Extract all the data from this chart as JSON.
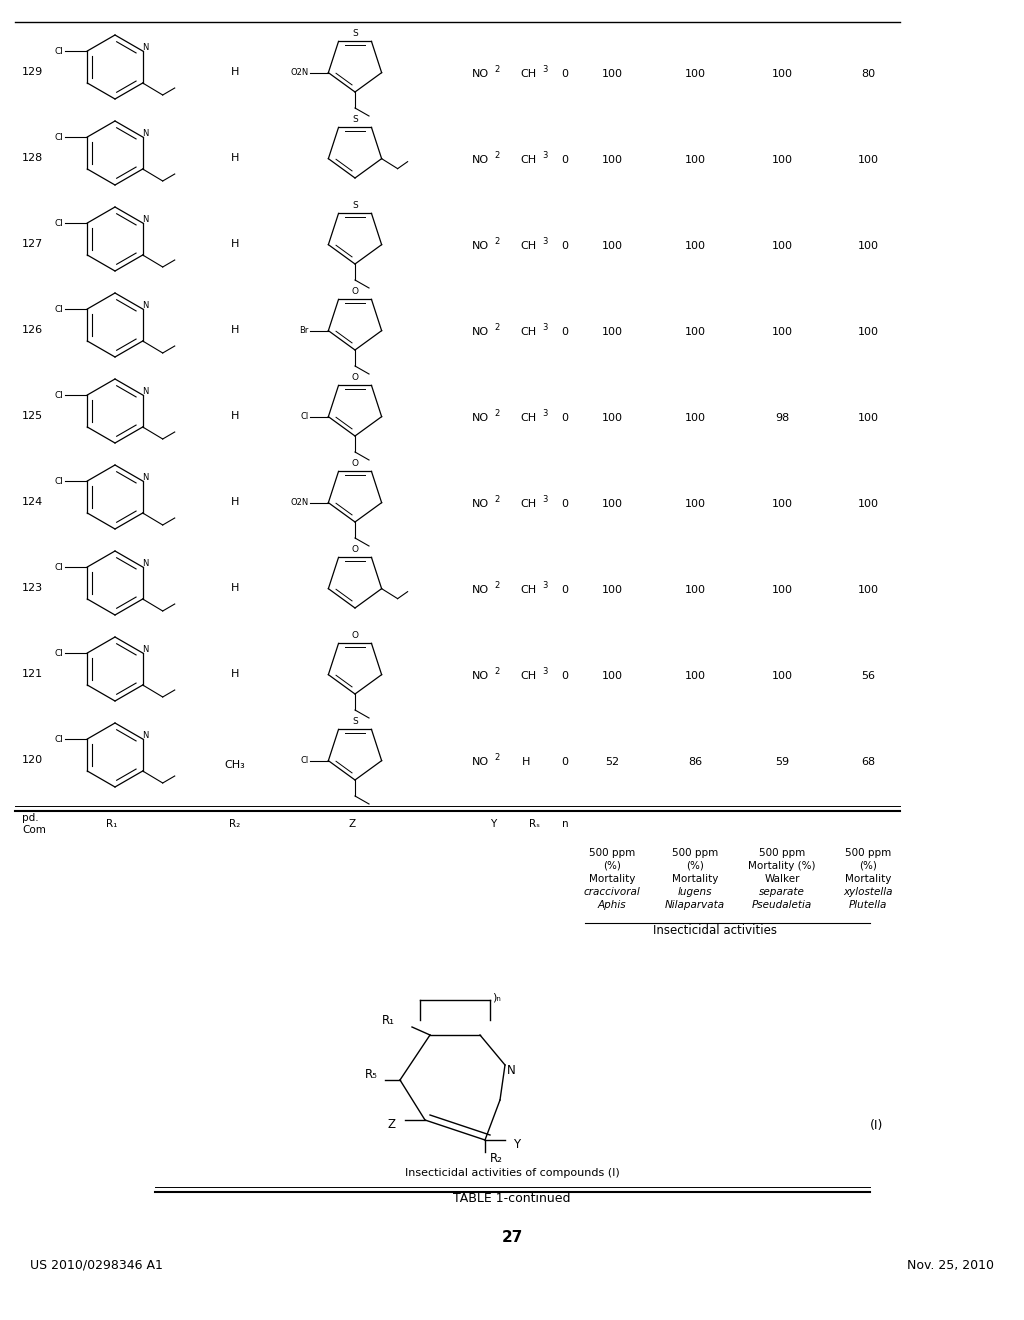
{
  "header_left": "US 2010/0298346 A1",
  "header_right": "Nov. 25, 2010",
  "page_number": "27",
  "table_title": "TABLE 1-continued",
  "table_subtitle": "Insecticidal activities of compounds (I)",
  "compound_label": "(I)",
  "insecticidal_header": "Insecticidal activities",
  "rows": [
    {
      "cpd": "120",
      "R2": "CH3",
      "Z_type": "thiophene2_cl",
      "Z_sub": "Cl",
      "Y": "NO2",
      "Rs": "H",
      "n": "0",
      "aphis": "52",
      "nilap": "86",
      "pseudo": "59",
      "plutella": "68"
    },
    {
      "cpd": "121",
      "R2": "H",
      "Z_type": "furan2_me",
      "Z_sub": "",
      "Y": "NO2",
      "Rs": "CH3",
      "n": "0",
      "aphis": "100",
      "nilap": "100",
      "pseudo": "100",
      "plutella": "56"
    },
    {
      "cpd": "123",
      "R2": "H",
      "Z_type": "furan3_me",
      "Z_sub": "",
      "Y": "NO2",
      "Rs": "CH3",
      "n": "0",
      "aphis": "100",
      "nilap": "100",
      "pseudo": "100",
      "plutella": "100"
    },
    {
      "cpd": "124",
      "R2": "H",
      "Z_type": "furan2_no2",
      "Z_sub": "O2N",
      "Y": "NO2",
      "Rs": "CH3",
      "n": "0",
      "aphis": "100",
      "nilap": "100",
      "pseudo": "100",
      "plutella": "100"
    },
    {
      "cpd": "125",
      "R2": "H",
      "Z_type": "furan2_cl",
      "Z_sub": "Cl",
      "Y": "NO2",
      "Rs": "CH3",
      "n": "0",
      "aphis": "100",
      "nilap": "100",
      "pseudo": "98",
      "plutella": "100"
    },
    {
      "cpd": "126",
      "R2": "H",
      "Z_type": "furan2_br",
      "Z_sub": "Br",
      "Y": "NO2",
      "Rs": "CH3",
      "n": "0",
      "aphis": "100",
      "nilap": "100",
      "pseudo": "100",
      "plutella": "100"
    },
    {
      "cpd": "127",
      "R2": "H",
      "Z_type": "thiophene2_me",
      "Z_sub": "",
      "Y": "NO2",
      "Rs": "CH3",
      "n": "0",
      "aphis": "100",
      "nilap": "100",
      "pseudo": "100",
      "plutella": "100"
    },
    {
      "cpd": "128",
      "R2": "H",
      "Z_type": "thiophene3_me",
      "Z_sub": "",
      "Y": "NO2",
      "Rs": "CH3",
      "n": "0",
      "aphis": "100",
      "nilap": "100",
      "pseudo": "100",
      "plutella": "100"
    },
    {
      "cpd": "129",
      "R2": "H",
      "Z_type": "thiophene2_no2",
      "Z_sub": "O2N",
      "Y": "NO2",
      "Rs": "CH3",
      "n": "0",
      "aphis": "100",
      "nilap": "100",
      "pseudo": "100",
      "plutella": "80"
    }
  ]
}
